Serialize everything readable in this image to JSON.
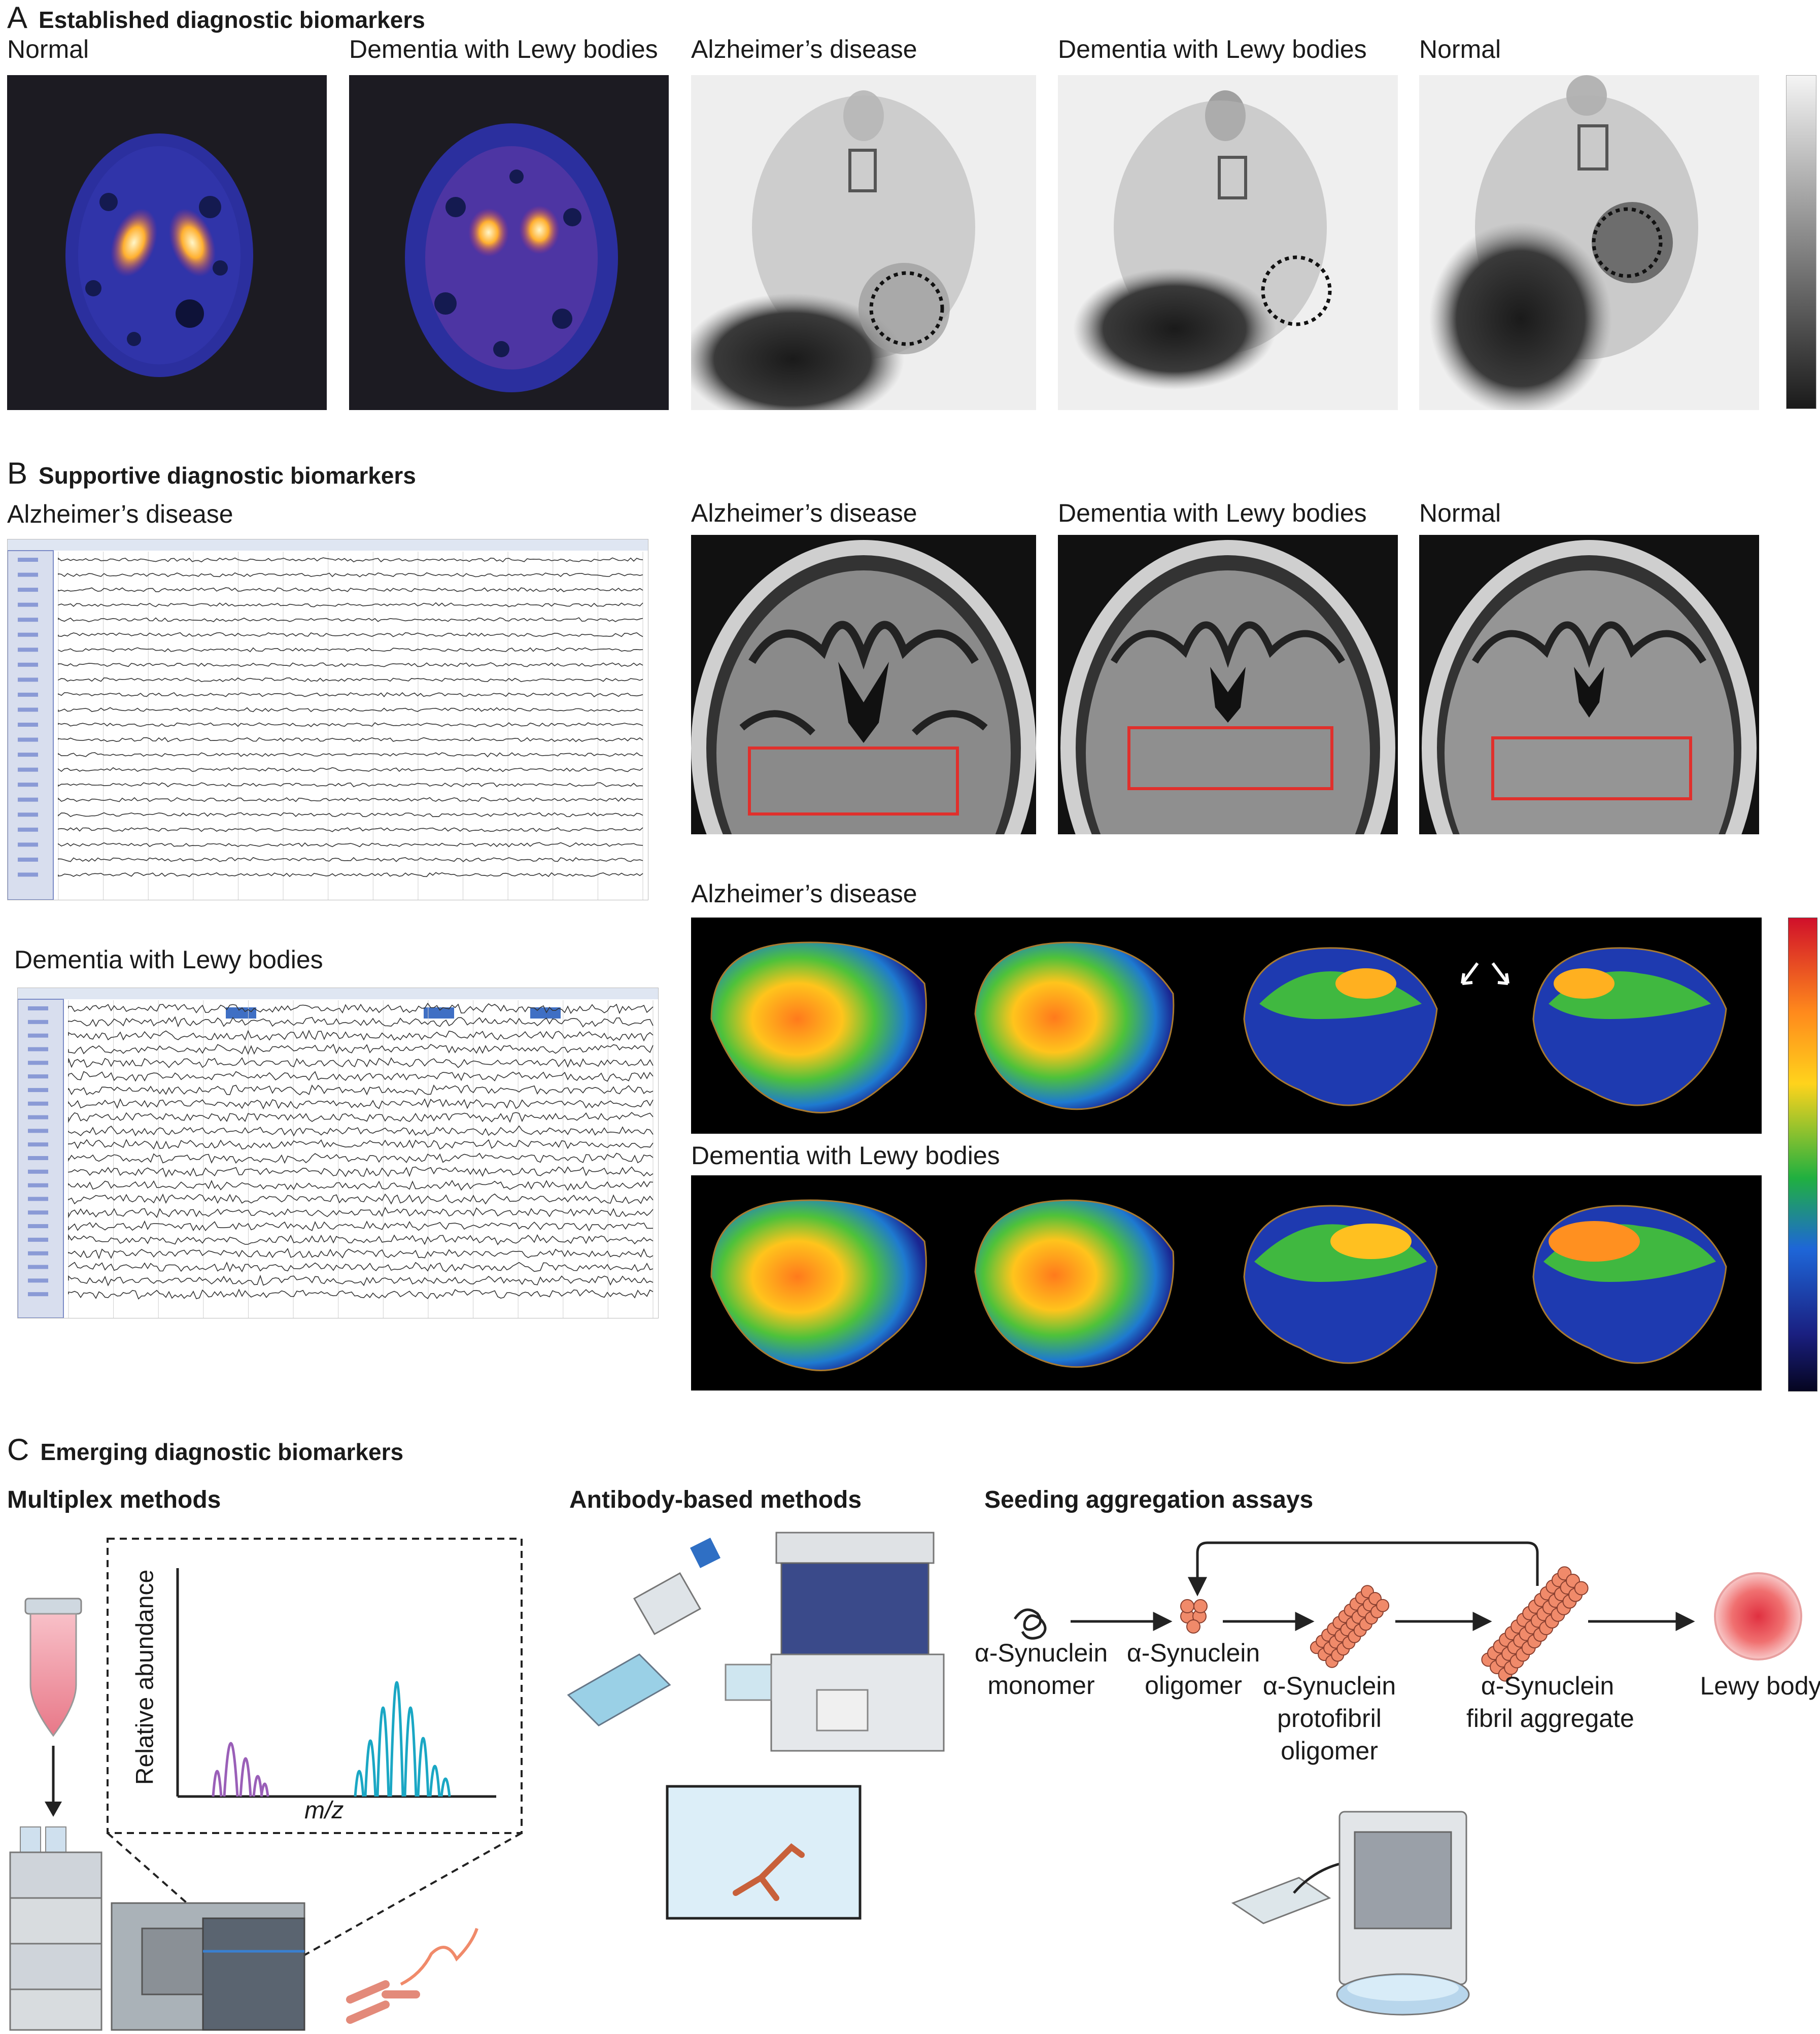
{
  "sectionA": {
    "letter": "A",
    "title": "Established diagnostic biomarkers",
    "labels": [
      "Normal",
      "Dementia with Lewy bodies",
      "Alzheimer’s disease",
      "Dementia with Lewy bodies",
      "Normal"
    ]
  },
  "sectionB": {
    "letter": "B",
    "title": "Supportive diagnostic biomarkers",
    "eeg_labels": [
      "Alzheimer’s disease",
      "Dementia with Lewy bodies"
    ],
    "mri_labels": [
      "Alzheimer’s disease",
      "Dementia with Lewy bodies",
      "Normal"
    ],
    "spect_labels": [
      "Alzheimer’s disease",
      "Dementia with Lewy bodies"
    ]
  },
  "sectionC": {
    "letter": "C",
    "title": "Emerging diagnostic biomarkers",
    "multiplex": {
      "title": "Multiplex methods",
      "ylabel": "Relative abundance",
      "xlabel": "m/z"
    },
    "antibody": {
      "title": "Antibody-based methods"
    },
    "seeding": {
      "title": "Seeding aggregation assays",
      "steps": [
        {
          "line1": "α-Synuclein",
          "line2": "monomer",
          "line3": ""
        },
        {
          "line1": "α-Synuclein",
          "line2": "oligomer",
          "line3": ""
        },
        {
          "line1": "α-Synuclein",
          "line2": "protofibril",
          "line3": "oligomer"
        },
        {
          "line1": "α-Synuclein",
          "line2": "fibril aggregate",
          "line3": ""
        },
        {
          "line1": "Lewy body",
          "line2": "",
          "line3": ""
        }
      ]
    }
  },
  "colors": {
    "spect_bg": "#1c1b22",
    "dat_blue": "#2b2f9e",
    "mri_box": "#e0302c",
    "eeg_blue": "#3f6fc4",
    "ms_purple": "#9a5fb8",
    "ms_teal": "#1aa7c4",
    "synuclein": "#f08a6a"
  }
}
